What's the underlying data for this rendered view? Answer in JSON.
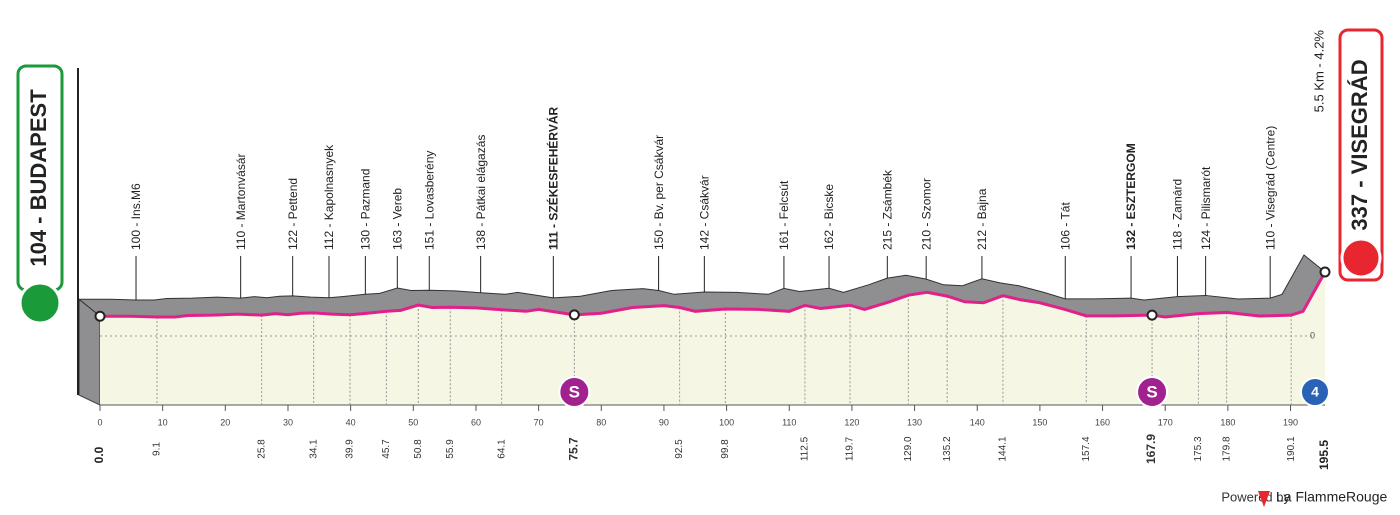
{
  "chart_data": {
    "type": "profile",
    "start": {
      "label": "104 - BUDAPEST",
      "km": {
        "value": 0,
        "label": "0.0"
      }
    },
    "finish": {
      "label": "337 - VISEGRÁD",
      "km": 195.5,
      "climb": "5.5 Km - 4.2%",
      "marker": "4"
    },
    "waypoints": [
      {
        "label": "100 - Ins.M6",
        "km": 9.1
      },
      {
        "label": "110 - Martonvásár",
        "km": 25.8
      },
      {
        "label": "122 - Pettend",
        "km": 34.1
      },
      {
        "label": "112 - Kapolnasnyek",
        "km": 39.9
      },
      {
        "label": "130 - Pazmand",
        "km": 45.7
      },
      {
        "label": "163 - Vereb",
        "km": 50.8
      },
      {
        "label": "151 - Lovasberény",
        "km": 55.9
      },
      {
        "label": "138 - Pátkai elágazás",
        "km": 64.1
      },
      {
        "label": "111 - SZÉKESFEHÉRVÁR",
        "km": 75.7,
        "bold": true,
        "marker": "S"
      },
      {
        "label": "150 - Bv. per Csákvár",
        "km": 92.5
      },
      {
        "label": "142 - Csákvár",
        "km": 99.8
      },
      {
        "label": "161 - Felcsút",
        "km": 112.5
      },
      {
        "label": "162 - Bicske",
        "km": 119.7
      },
      {
        "label": "215 - Zsámbék",
        "km": {
          "value": 129,
          "label": "129.0"
        }
      },
      {
        "label": "210 - Szomor",
        "km": 135.2
      },
      {
        "label": "212 - Bajna",
        "km": 144.1
      },
      {
        "label": "106 - Tát",
        "km": 157.4
      },
      {
        "label": "132 - ESZTERGOM",
        "km": 167.9,
        "bold": true,
        "marker": "S"
      },
      {
        "label": "118 - Zamárd",
        "km": 175.3
      },
      {
        "label": "124 - Pilismarót",
        "km": 179.8
      },
      {
        "label": "110 - Visegrád (Centre)",
        "km": 190.1
      }
    ],
    "km_ticks": [
      0,
      10,
      20,
      30,
      40,
      50,
      60,
      70,
      80,
      90,
      100,
      110,
      120,
      130,
      140,
      150,
      160,
      170,
      180,
      190
    ],
    "elevation_ticks": [
      0
    ],
    "profile": {
      "km": [
        0,
        5,
        9.1,
        12,
        14,
        18,
        22,
        25.8,
        28,
        30,
        32,
        34.1,
        37,
        39.9,
        42,
        45.7,
        48,
        50.8,
        53,
        55.9,
        60,
        64.1,
        68,
        70,
        73,
        75.7,
        80,
        85,
        90,
        92.5,
        95,
        99.8,
        105,
        110,
        112.5,
        115,
        119.7,
        122,
        126,
        129,
        132,
        135.2,
        138,
        141,
        144.1,
        147,
        150,
        154,
        157.4,
        162,
        167.9,
        170,
        175.3,
        179.8,
        185,
        190.1,
        192,
        195.5
      ],
      "elevation": [
        104,
        104,
        100,
        100,
        108,
        110,
        115,
        110,
        118,
        112,
        120,
        122,
        115,
        112,
        118,
        130,
        135,
        163,
        150,
        151,
        148,
        138,
        130,
        140,
        125,
        111,
        120,
        150,
        160,
        150,
        130,
        142,
        140,
        130,
        161,
        145,
        162,
        140,
        180,
        215,
        230,
        210,
        180,
        175,
        212,
        190,
        175,
        140,
        106,
        106,
        110,
        100,
        118,
        124,
        105,
        110,
        130,
        337
      ]
    },
    "footer": {
      "powered": "Powered by",
      "brand": "La FlammeRouge"
    }
  }
}
